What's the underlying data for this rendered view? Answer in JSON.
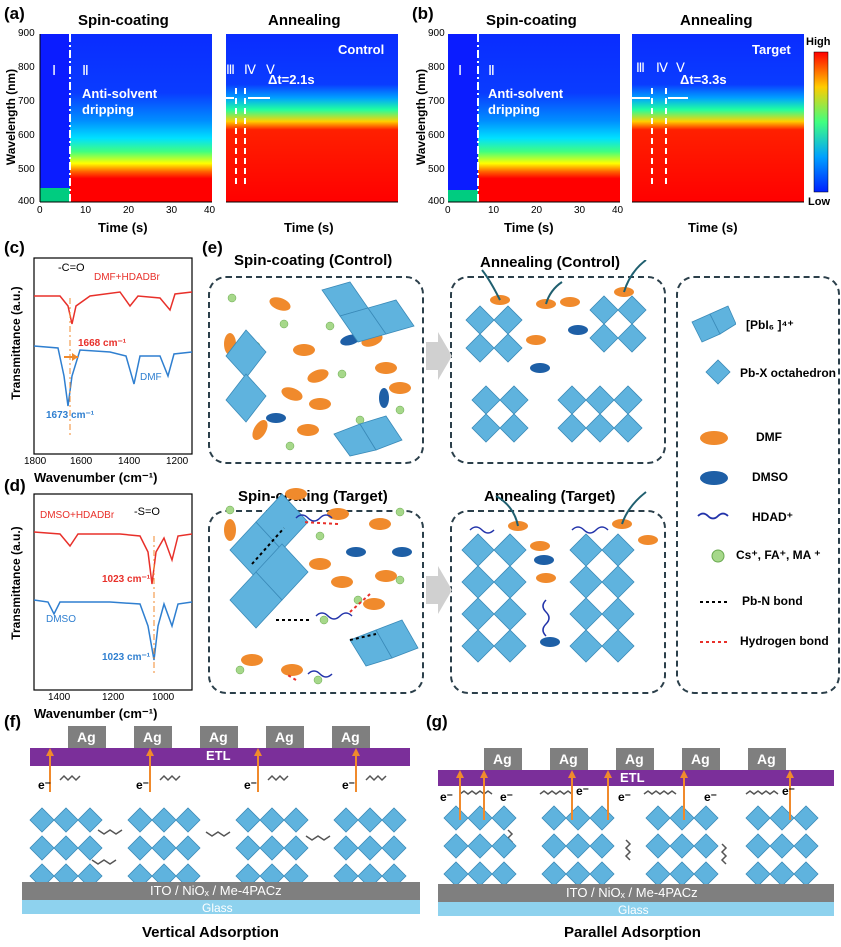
{
  "panels": {
    "a": {
      "label": "(a)",
      "spin_title": "Spin-coating",
      "anneal_title": "Annealing",
      "tag": "Control",
      "dt": "Δt=2.1s",
      "stages_left": [
        "Ⅰ",
        "Ⅱ"
      ],
      "stages_right": [
        "Ⅲ",
        "Ⅳ",
        "Ⅴ"
      ],
      "annotation": "Anti-solvent dripping",
      "ylabel": "Wavelength (nm)",
      "xlabel": "Time (s)",
      "yticks": [
        "900",
        "800",
        "700",
        "600",
        "500",
        "400"
      ],
      "xticks": [
        "0",
        "10",
        "20",
        "30",
        "40"
      ]
    },
    "b": {
      "label": "(b)",
      "spin_title": "Spin-coating",
      "anneal_title": "Annealing",
      "tag": "Target",
      "dt": "Δt=3.3s",
      "stages_left": [
        "Ⅰ",
        "Ⅱ"
      ],
      "stages_right": [
        "Ⅲ",
        "Ⅳ",
        "Ⅴ"
      ],
      "annotation": "Anti-solvent dripping",
      "ylabel": "Wavelength (nm)",
      "xlabel": "Time (s)",
      "yticks": [
        "900",
        "800",
        "700",
        "600",
        "500",
        "400"
      ],
      "xticks": [
        "0",
        "10",
        "20",
        "30",
        "40"
      ],
      "colorbar_high": "High",
      "colorbar_low": "Low"
    },
    "c": {
      "label": "(c)",
      "group": "-C=O",
      "series_top": "DMF+HDADBr",
      "series_bottom": "DMF",
      "peak_top": "1668 cm⁻¹",
      "peak_bottom": "1673 cm⁻¹",
      "ylabel": "Transmittance (a.u.)",
      "xlabel": "Wavenumber (cm⁻¹)",
      "xticks": [
        "1800",
        "1600",
        "1400",
        "1200"
      ]
    },
    "d": {
      "label": "(d)",
      "group": "-S=O",
      "series_top": "DMSO+HDADBr",
      "series_bottom": "DMSO",
      "peak_top": "1023 cm⁻¹",
      "peak_bottom": "1023 cm⁻¹",
      "ylabel": "Transmittance (a.u.)",
      "xlabel": "Wavenumber (cm⁻¹)",
      "xticks": [
        "1400",
        "1200",
        "1000"
      ]
    },
    "e": {
      "label": "(e)",
      "spin_control": "Spin-coating (Control)",
      "anneal_control": "Annealing (Control)",
      "spin_target": "Spin-coating (Target)",
      "anneal_target": "Annealing (Target)",
      "legend": {
        "pbi6": "[PbI₆ ]⁴⁺",
        "octa": "Pb-X octahedron",
        "dmf": "DMF",
        "dmso": "DMSO",
        "hdad": "HDAD⁺",
        "cations": "Cs⁺, FA⁺, MA ⁺",
        "pbn": "Pb-N bond",
        "hbond": "Hydrogen bond"
      }
    },
    "f": {
      "label": "(f)",
      "electrode": "Ag",
      "etl": "ETL",
      "substrate": "ITO / NiOₓ / Me-4PACz",
      "glass": "Glass",
      "electron": "e⁻",
      "caption": "Vertical Adsorption"
    },
    "g": {
      "label": "(g)",
      "electrode": "Ag",
      "etl": "ETL",
      "substrate": "ITO / NiOₓ / Me-4PACz",
      "glass": "Glass",
      "electron": "e⁻",
      "caption": "Parallel Adsorption"
    }
  },
  "colors": {
    "red": "#e8302a",
    "blue": "#2f7fd0",
    "orange": "#f08a2c",
    "purple": "#7b2f9a",
    "octa": "#5fb3de",
    "dmso": "#1e5fa6"
  }
}
